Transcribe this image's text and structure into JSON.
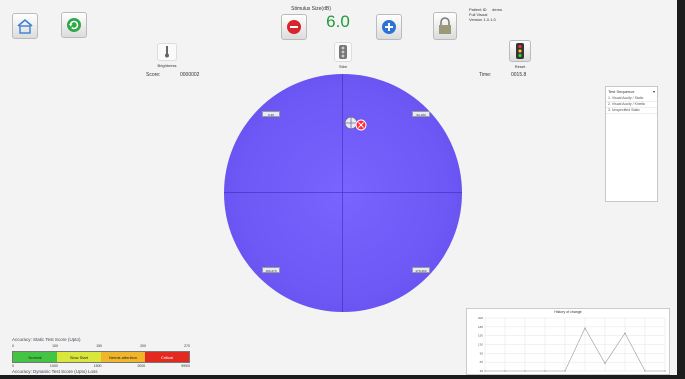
{
  "header": {
    "adjust_label": "Stimulus Size(dB)",
    "value": "6.0"
  },
  "patient": {
    "id_label": "Patient ID",
    "id_value": "demo",
    "line2": "Full Visual",
    "line3": "Version 1.0.1.0"
  },
  "left_panel": {
    "icon_label": "Brightness",
    "score_label": "Score:",
    "score_value": "0000002"
  },
  "center_top": {
    "icon_label": "Stim"
  },
  "right_panel": {
    "icon_label": "Reset",
    "time_label": "Time:",
    "time_value": "0015.8"
  },
  "visual_field": {
    "quadrants": [
      "0-90",
      "90-180",
      "180-270",
      "270-360"
    ],
    "stimulus_color": "#ff2a3c",
    "field_color": "#6e58f6"
  },
  "sequence_panel": {
    "title": "Test Sequence",
    "items": [
      "1. Visual Acuity / Static",
      "2. Visual Acuity / Kinetic",
      "3. Unspecified Static"
    ]
  },
  "static_test": {
    "label": "Accuracy: Static Test Score",
    "suffix": "(Upto)",
    "ticks": [
      "0",
      "100",
      "150",
      "200",
      "270"
    ],
    "segments": [
      {
        "label": "Normal",
        "color": "#43c442"
      },
      {
        "label": "Slow Start",
        "color": "#d9e63a"
      },
      {
        "label": "Needs attention",
        "color": "#f1b52a"
      },
      {
        "label": "Critical",
        "color": "#e22a20"
      }
    ],
    "bottom_ticks": [
      "0",
      "1000",
      "1500",
      "2000",
      "999/0"
    ]
  },
  "dynamic_test": {
    "label": "Accuracy: Dynamic Test Score",
    "suffix": "(Upto) Loss"
  },
  "mini_chart": {
    "title": "History of change",
    "y_ticks": [
      "200",
      "180",
      "150",
      "120",
      "90",
      "60",
      "30"
    ]
  },
  "chart_data": {
    "type": "line",
    "title": "History of change",
    "x": [
      1,
      2,
      3,
      4,
      5,
      6,
      7,
      8,
      9,
      10
    ],
    "series": [
      {
        "values": [
          0,
          0,
          0,
          0,
          0,
          170,
          30,
          150,
          0,
          0
        ]
      }
    ],
    "ylim": [
      0,
      210
    ]
  }
}
